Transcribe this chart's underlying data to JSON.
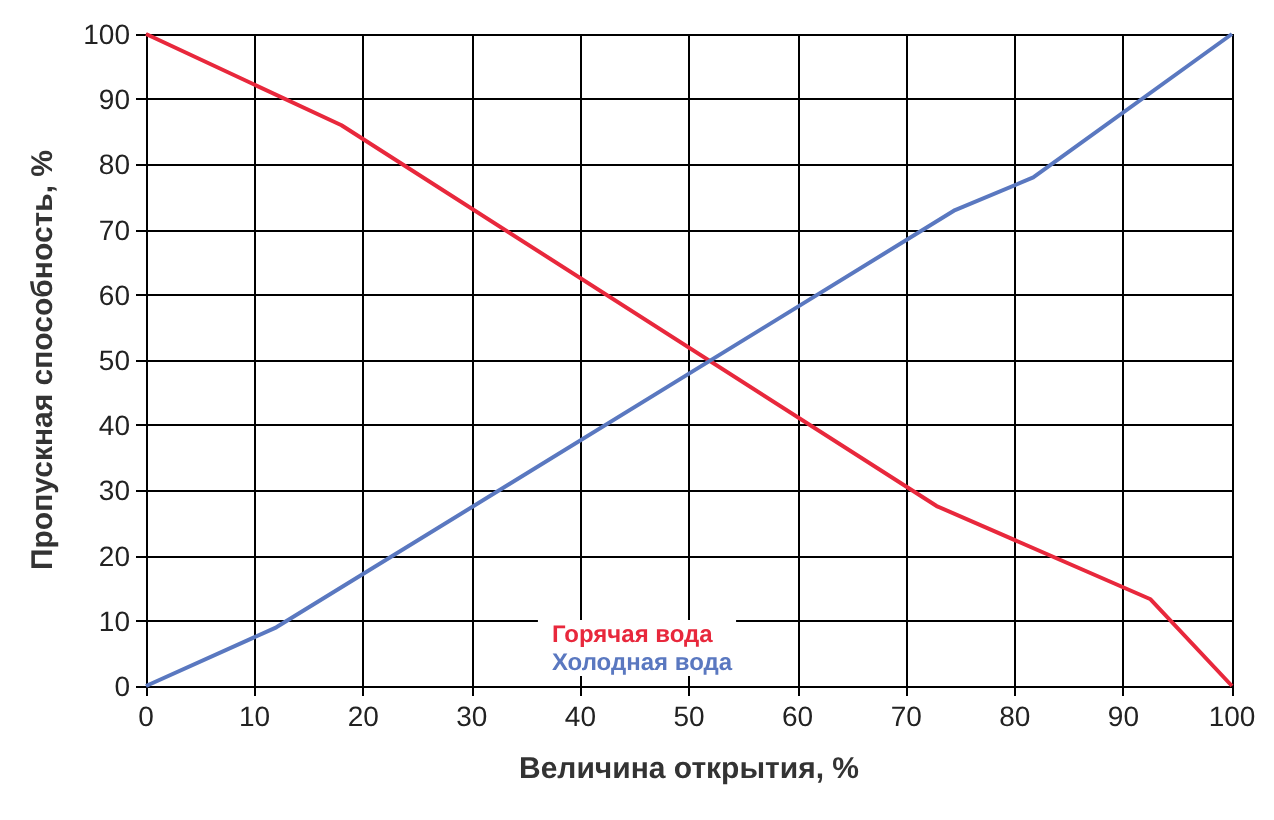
{
  "chart_data": {
    "type": "line",
    "xlabel": "Величина открытия, %",
    "ylabel": "Пропускная способность, %",
    "xlim": [
      0,
      100
    ],
    "xticks": [
      0,
      10,
      20,
      30,
      40,
      50,
      60,
      70,
      80,
      90,
      100
    ],
    "ylim": [
      0,
      100
    ],
    "yticks": [
      0,
      10,
      20,
      30,
      40,
      50,
      60,
      70,
      80,
      90,
      100
    ],
    "grid": true,
    "legend": "bottom",
    "marker": "none",
    "line_style": "solid",
    "series": [
      {
        "name": "Горячая вода",
        "color": "#e8283c",
        "x": [
          0,
          18,
          72.8,
          92.5,
          100
        ],
        "values": [
          100,
          86,
          27.6,
          13.3,
          0
        ]
      },
      {
        "name": "Холодная вода",
        "color": "#5a78c0",
        "x": [
          0,
          12,
          74.5,
          81.7,
          100
        ],
        "values": [
          0,
          9,
          73,
          78,
          100
        ]
      }
    ]
  }
}
